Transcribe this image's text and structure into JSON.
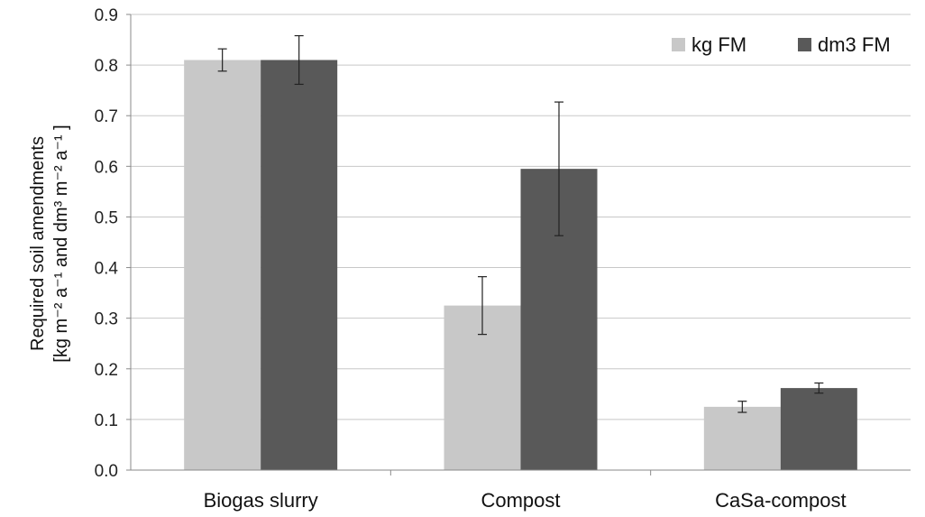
{
  "chart_data": {
    "type": "bar",
    "categories": [
      "Biogas slurry",
      "Compost",
      "CaSa-compost"
    ],
    "series": [
      {
        "name": "kg FM",
        "color": "#c8c8c8",
        "values": [
          0.81,
          0.325,
          0.125
        ],
        "errors": [
          0.022,
          0.057,
          0.011
        ]
      },
      {
        "name": "dm3 FM",
        "color": "#595959",
        "values": [
          0.81,
          0.595,
          0.162
        ],
        "errors": [
          0.048,
          0.132,
          0.01
        ]
      }
    ],
    "ylabel_line1": "Required soil amendments",
    "ylabel_line2": "[kg m⁻² a⁻¹ and dm³ m⁻² a⁻¹ ]",
    "ylim": [
      0,
      0.9
    ],
    "yticks": [
      "0.0",
      "0.1",
      "0.2",
      "0.3",
      "0.4",
      "0.5",
      "0.6",
      "0.7",
      "0.8",
      "0.9"
    ],
    "grid": true,
    "legend_position": "top-right"
  }
}
